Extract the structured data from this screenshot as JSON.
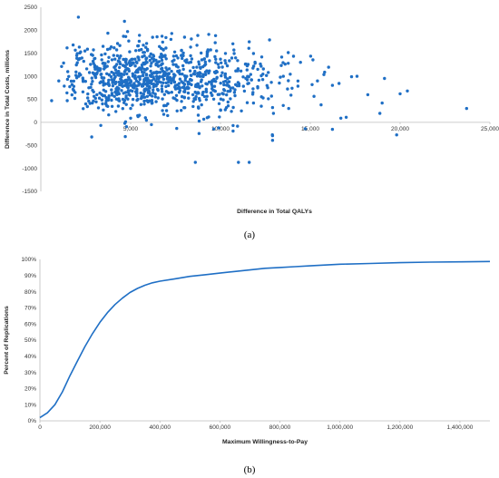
{
  "chart_data": [
    {
      "type": "scatter",
      "panel_label": "(a)",
      "xlabel": "Difference in Total QALYs",
      "ylabel": "Difference in Total Costs, millions",
      "xlim": [
        0,
        25000
      ],
      "ylim": [
        -1500,
        2500
      ],
      "xticks": [
        "5,000",
        "10,000",
        "15,000",
        "20,000",
        "25,000"
      ],
      "yticks": [
        "2500",
        "2000",
        "1500",
        "1000",
        "500",
        "0",
        "-500",
        "-1000",
        "-1500"
      ],
      "color": "#1f6fc5",
      "grid": false,
      "n_points": 1000,
      "points_sample": [
        [
          23700,
          300
        ],
        [
          20000,
          620
        ],
        [
          19000,
          420
        ],
        [
          18200,
          600
        ],
        [
          17600,
          1000
        ],
        [
          17300,
          990
        ],
        [
          17000,
          110
        ],
        [
          16700,
          90
        ],
        [
          15800,
          1090
        ],
        [
          15600,
          380
        ],
        [
          15400,
          900
        ],
        [
          15100,
          820
        ],
        [
          13800,
          300
        ],
        [
          13500,
          1000
        ],
        [
          12900,
          320
        ],
        [
          12900,
          -390
        ],
        [
          12900,
          -290
        ],
        [
          12300,
          1420
        ],
        [
          11600,
          -870
        ],
        [
          11000,
          -870
        ],
        [
          8600,
          -870
        ],
        [
          10700,
          -190
        ],
        [
          10700,
          -70
        ],
        [
          9900,
          -120
        ],
        [
          4700,
          -310
        ],
        [
          600,
          470
        ],
        [
          1800,
          1680
        ],
        [
          4600,
          1870
        ],
        [
          8000,
          1850
        ],
        [
          11600,
          1750
        ],
        [
          2000,
          1450
        ],
        [
          3000,
          1200
        ],
        [
          4500,
          1050
        ],
        [
          6000,
          900
        ],
        [
          7500,
          800
        ],
        [
          1000,
          900
        ],
        [
          2500,
          400
        ],
        [
          5000,
          300
        ],
        [
          9000,
          600
        ],
        [
          3500,
          700
        ],
        [
          1500,
          1100
        ],
        [
          6500,
          1300
        ]
      ]
    },
    {
      "type": "line",
      "panel_label": "(b)",
      "xlabel": "Maximum Willingness-to-Pay",
      "ylabel": "Percent of Replications",
      "xlim": [
        0,
        1500000
      ],
      "ylim": [
        0,
        100
      ],
      "xticks": [
        "0",
        "200,000",
        "400,000",
        "600,000",
        "800,000",
        "1,000,000",
        "1,200,000",
        "1,400,000"
      ],
      "yticks": [
        "100%",
        "90%",
        "80%",
        "70%",
        "60%",
        "50%",
        "40%",
        "30%",
        "20%",
        "10%",
        "0%"
      ],
      "color": "#1f6fc5",
      "grid": false,
      "series": [
        {
          "x": [
            0,
            25000,
            50000,
            75000,
            100000,
            125000,
            150000,
            175000,
            200000,
            225000,
            250000,
            275000,
            300000,
            325000,
            350000,
            375000,
            400000,
            450000,
            500000,
            550000,
            600000,
            650000,
            700000,
            750000,
            800000,
            850000,
            900000,
            950000,
            1000000,
            1100000,
            1200000,
            1300000,
            1400000,
            1500000
          ],
          "values": [
            2,
            5,
            10,
            18,
            28,
            37,
            46,
            54,
            61,
            67,
            72,
            76,
            79.5,
            82,
            84,
            85.5,
            86.5,
            88,
            89.5,
            90.5,
            91.5,
            92.5,
            93.5,
            94.5,
            95,
            95.5,
            96,
            96.5,
            97,
            97.5,
            98,
            98.3,
            98.5,
            98.7
          ]
        }
      ]
    }
  ]
}
